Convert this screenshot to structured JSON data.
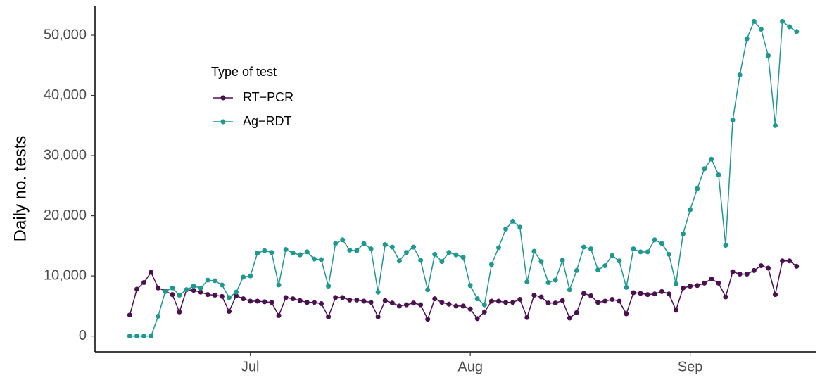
{
  "chart_data": {
    "type": "line",
    "y_label": "Daily no. tests",
    "legend_title": "Type of test",
    "x": [
      0,
      1,
      2,
      3,
      4,
      5,
      6,
      7,
      8,
      9,
      10,
      11,
      12,
      13,
      14,
      15,
      16,
      17,
      18,
      19,
      20,
      21,
      22,
      23,
      24,
      25,
      26,
      27,
      28,
      29,
      30,
      31,
      32,
      33,
      34,
      35,
      36,
      37,
      38,
      39,
      40,
      41,
      42,
      43,
      44,
      45,
      46,
      47,
      48,
      49,
      50,
      51,
      52,
      53,
      54,
      55,
      56,
      57,
      58,
      59,
      60,
      61,
      62,
      63,
      64,
      65,
      66,
      67,
      68,
      69,
      70,
      71,
      72,
      73,
      74,
      75,
      76,
      77,
      78,
      79,
      80,
      81,
      82,
      83,
      84,
      85,
      86,
      87,
      88,
      89,
      90,
      91,
      92,
      93,
      94
    ],
    "xlim": [
      -4.9,
      96.8
    ],
    "xticks": [
      {
        "value": 17,
        "label": "Jul"
      },
      {
        "value": 48,
        "label": "Aug"
      },
      {
        "value": 79,
        "label": "Sep"
      }
    ],
    "ylim": [
      -2615,
      54915
    ],
    "yticks": [
      0,
      {
        "value": 10000,
        "label": "10,000"
      },
      {
        "value": 20000,
        "label": "20,000"
      },
      {
        "value": 30000,
        "label": "30,000"
      },
      {
        "value": 40000,
        "label": "40,000"
      },
      {
        "value": 50000,
        "label": "50,000"
      }
    ],
    "grid": false,
    "series": [
      {
        "name": "RT−PCR",
        "color": "#4a1050",
        "values": [
          3500,
          7800,
          8900,
          10600,
          8000,
          7500,
          6900,
          4000,
          7700,
          7600,
          7300,
          6900,
          6800,
          6600,
          4100,
          6700,
          6200,
          5800,
          5800,
          5700,
          5600,
          3400,
          6400,
          6200,
          5900,
          5600,
          5600,
          5400,
          3200,
          6400,
          6400,
          6000,
          6000,
          5800,
          5600,
          3200,
          5900,
          5500,
          5000,
          5200,
          5500,
          5200,
          2800,
          6200,
          5600,
          5300,
          5000,
          5000,
          4500,
          2900,
          4000,
          5800,
          5800,
          5600,
          5600,
          6100,
          3100,
          6800,
          6500,
          5500,
          5500,
          5900,
          3000,
          3900,
          7100,
          6700,
          5600,
          5800,
          6100,
          5800,
          3700,
          7200,
          7100,
          6900,
          7000,
          7400,
          7000,
          4300,
          8000,
          8300,
          8400,
          8800,
          9500,
          8800,
          6500,
          10700,
          10300,
          10300,
          10900,
          11700,
          11300,
          6900,
          12500,
          12500,
          11600
        ]
      },
      {
        "name": "Ag−RDT",
        "color": "#1f9890",
        "values": [
          0,
          0,
          0,
          0,
          3300,
          7400,
          8000,
          6800,
          7700,
          8300,
          8000,
          9300,
          9200,
          8500,
          6400,
          7300,
          9800,
          10000,
          13800,
          14200,
          13900,
          8500,
          14400,
          13800,
          13500,
          14000,
          12800,
          12700,
          8300,
          15400,
          16000,
          14300,
          14200,
          15400,
          14500,
          7300,
          15200,
          14800,
          12500,
          13900,
          14800,
          12600,
          7700,
          13600,
          12400,
          13900,
          13500,
          13100,
          8400,
          6200,
          5200,
          11900,
          14700,
          17800,
          19100,
          18100,
          9000,
          14100,
          12400,
          8900,
          9300,
          12600,
          7700,
          10900,
          14800,
          14500,
          11000,
          11700,
          13400,
          12500,
          8100,
          14500,
          14000,
          14000,
          16000,
          15400,
          13600,
          8700,
          17000,
          21000,
          24500,
          27800,
          29400,
          26800,
          15100,
          35900,
          43400,
          49400,
          52300,
          51000,
          46600,
          35000,
          52300,
          51400,
          50600
        ]
      }
    ]
  }
}
